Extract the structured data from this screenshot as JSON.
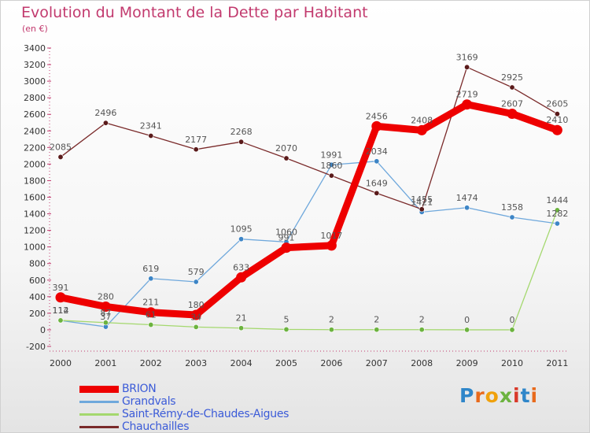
{
  "title": "Evolution du Montant de la Dette par Habitant",
  "subtitle": "(en €)",
  "logo": {
    "text": [
      "P",
      "r",
      "o",
      "x",
      "i",
      "t",
      "i"
    ]
  },
  "chart_data": {
    "type": "line",
    "x": [
      "2000",
      "2001",
      "2002",
      "2003",
      "2004",
      "2005",
      "2006",
      "2007",
      "2008",
      "2009",
      "2010",
      "2011"
    ],
    "ylim": [
      -200,
      3400
    ],
    "yticks": [
      -200,
      0,
      200,
      400,
      600,
      800,
      1000,
      1200,
      1400,
      1600,
      1800,
      2000,
      2200,
      2400,
      2600,
      2800,
      3000,
      3200,
      3400
    ],
    "grid": false,
    "legend_position": "bottom-left",
    "series": [
      {
        "name": "Grandvals",
        "color": "#6fa8dc",
        "marker": "#3d85c6",
        "values": [
          112,
          37,
          619,
          579,
          1095,
          1060,
          1991,
          2034,
          1421,
          1474,
          1358,
          1282
        ],
        "labels": [
          "112",
          "37",
          "619",
          "579",
          "1095",
          "1060",
          "1991",
          "2034",
          "1421",
          "1474",
          "1358",
          "1282"
        ]
      },
      {
        "name": "Saint-Rémy-de-Chaudes-Aigues",
        "color": "#a4d86e",
        "marker": "#6cb33f",
        "values": [
          114,
          87,
          61,
          34,
          21,
          5,
          2,
          2,
          2,
          0,
          0,
          1444
        ],
        "labels": [
          "114",
          "87",
          "61",
          "34",
          "21",
          "5",
          "2",
          "2",
          "2",
          "0",
          "0",
          "1444"
        ]
      },
      {
        "name": "Chauchailles",
        "color": "#7a2a2a",
        "marker": "#5a1a1a",
        "values": [
          2085,
          2496,
          2341,
          2177,
          2268,
          2070,
          1860,
          1649,
          1455,
          3169,
          2925,
          2605
        ],
        "labels": [
          "2085",
          "2496",
          "2341",
          "2177",
          "2268",
          "2070",
          "1860",
          "1649",
          "1455",
          "3169",
          "2925",
          "2605"
        ]
      },
      {
        "name": "BRION",
        "color": "#ee0000",
        "marker": "#ee0000",
        "values": [
          391,
          280,
          211,
          180,
          633,
          991,
          1017,
          2456,
          2408,
          2719,
          2607,
          2410
        ],
        "labels": [
          "391",
          "280",
          "211",
          "180",
          "633",
          "991",
          "1017",
          "2456",
          "2408",
          "2719",
          "2607",
          "2410"
        ]
      }
    ],
    "legend": [
      {
        "name": "BRION",
        "color": "#ee0000"
      },
      {
        "name": "Grandvals",
        "color": "#6fa8dc"
      },
      {
        "name": "Saint-Rémy-de-Chaudes-Aigues",
        "color": "#a4d86e"
      },
      {
        "name": "Chauchailles",
        "color": "#7a2a2a"
      }
    ]
  }
}
